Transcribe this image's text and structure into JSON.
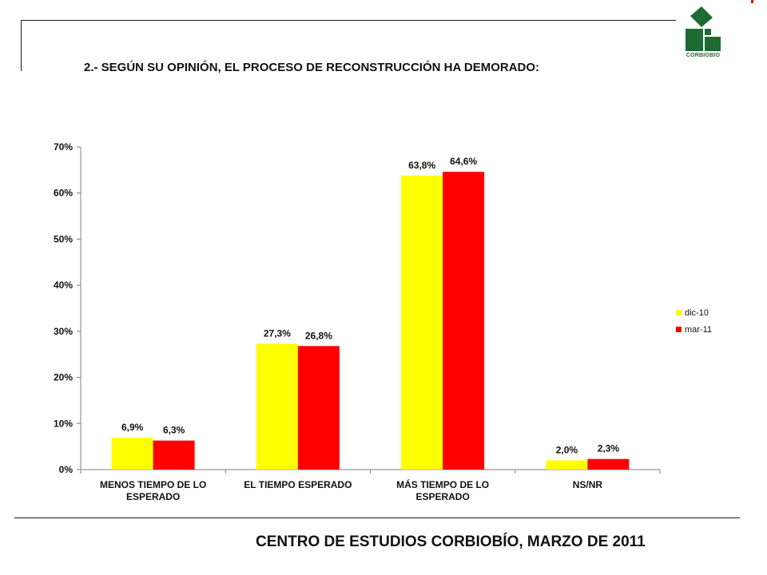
{
  "header": {
    "title": "2.-  SEGÚN SU OPINIÓN, EL PROCESO DE RECONSTRUCCIÓN HA DEMORADO:",
    "logo_text": "CORBIOBIO"
  },
  "footer": {
    "text": "CENTRO DE ESTUDIOS CORBIOBÍO,  MARZO DE 2011"
  },
  "colors": {
    "dic-10": "#ffff00",
    "mar-11": "#ff0000",
    "logo_green": "#1d6b33"
  },
  "chart_data": {
    "type": "bar",
    "categories": [
      [
        "MENOS TIEMPO DE LO",
        "ESPERADO"
      ],
      [
        "EL TIEMPO ESPERADO"
      ],
      [
        "MÁS TIEMPO DE LO",
        "ESPERADO"
      ],
      [
        "NS/NR"
      ]
    ],
    "series": [
      {
        "name": "dic-10",
        "values": [
          6.9,
          27.3,
          63.8,
          2.0
        ],
        "labels": [
          "6,9%",
          "27,3%",
          "63,8%",
          "2,0%"
        ]
      },
      {
        "name": "mar-11",
        "values": [
          6.3,
          26.8,
          64.6,
          2.3
        ],
        "labels": [
          "6,3%",
          "26,8%",
          "64,6%",
          "2,3%"
        ]
      }
    ],
    "yticks": [
      "0%",
      "10%",
      "20%",
      "30%",
      "40%",
      "50%",
      "60%",
      "70%"
    ],
    "ylim": [
      0,
      70
    ],
    "grid": false,
    "legend": "right",
    "title": "2.-  SEGÚN SU OPINIÓN, EL PROCESO DE RECONSTRUCCIÓN HA DEMORADO:",
    "xlabel": "",
    "ylabel": ""
  }
}
